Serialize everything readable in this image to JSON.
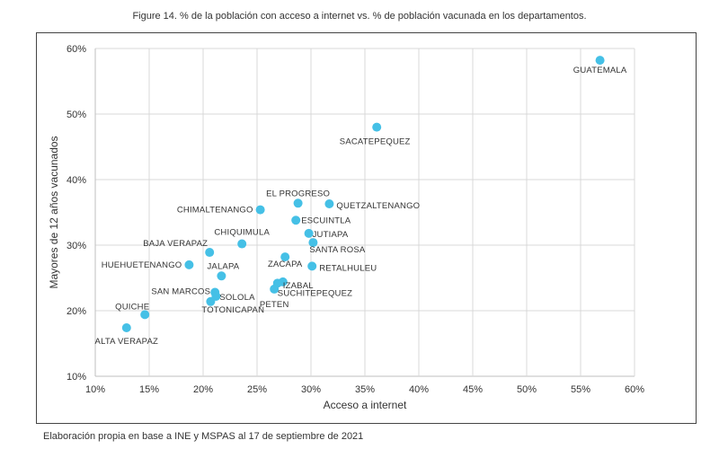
{
  "figure_title": "Figure 14. % de la población con acceso a internet vs. % de población vacunada en los departamentos.",
  "source_note": "Elaboración propia en base a INE y MSPAS al 17 de septiembre de 2021",
  "colors": {
    "point": "#45c0e6",
    "grid": "#d9d9d9",
    "axis": "#bfbfbf"
  },
  "chart_data": {
    "type": "scatter",
    "title": "",
    "xlabel": "Acceso a internet",
    "ylabel": "Mayores de 12 años vacunados",
    "xlim": [
      10,
      60
    ],
    "ylim": [
      10,
      60
    ],
    "x_ticks": [
      10,
      15,
      20,
      25,
      30,
      35,
      40,
      45,
      50,
      55,
      60
    ],
    "y_ticks": [
      10,
      20,
      30,
      40,
      50,
      60
    ],
    "tick_format": "percent",
    "grid": true,
    "points": [
      {
        "label": "GUATEMALA",
        "x": 56.8,
        "y": 58.2
      },
      {
        "label": "SACATEPEQUEZ",
        "x": 36.1,
        "y": 48.0
      },
      {
        "label": "EL PROGRESO",
        "x": 28.8,
        "y": 36.4
      },
      {
        "label": "QUETZALTENANGO",
        "x": 31.7,
        "y": 36.3
      },
      {
        "label": "CHIMALTENANGO",
        "x": 25.3,
        "y": 35.4
      },
      {
        "label": "ESCUINTLA",
        "x": 28.6,
        "y": 33.8
      },
      {
        "label": "JUTIAPA",
        "x": 29.8,
        "y": 31.8
      },
      {
        "label": "CHIQUIMULA",
        "x": 23.6,
        "y": 30.2
      },
      {
        "label": "SANTA ROSA",
        "x": 30.2,
        "y": 30.4
      },
      {
        "label": "BAJA VERAPAZ",
        "x": 20.6,
        "y": 28.9
      },
      {
        "label": "ZACAPA",
        "x": 27.6,
        "y": 28.2
      },
      {
        "label": "RETALHULEU",
        "x": 30.1,
        "y": 26.8
      },
      {
        "label": "HUEHUETENANGO",
        "x": 18.7,
        "y": 27.0
      },
      {
        "label": "JALAPA",
        "x": 21.7,
        "y": 25.3
      },
      {
        "label": "IZABAL",
        "x": 27.4,
        "y": 24.4
      },
      {
        "label": "SUCHITEPEQUEZ",
        "x": 26.9,
        "y": 24.2
      },
      {
        "label": "PETEN",
        "x": 26.6,
        "y": 23.3
      },
      {
        "label": "SAN MARCOS",
        "x": 21.1,
        "y": 22.8
      },
      {
        "label": "SOLOLA",
        "x": 21.2,
        "y": 22.2
      },
      {
        "label": "TOTONICAPAN",
        "x": 20.7,
        "y": 21.4
      },
      {
        "label": "QUICHE",
        "x": 14.6,
        "y": 19.4
      },
      {
        "label": "ALTA VERAPAZ",
        "x": 12.9,
        "y": 17.4
      }
    ]
  }
}
